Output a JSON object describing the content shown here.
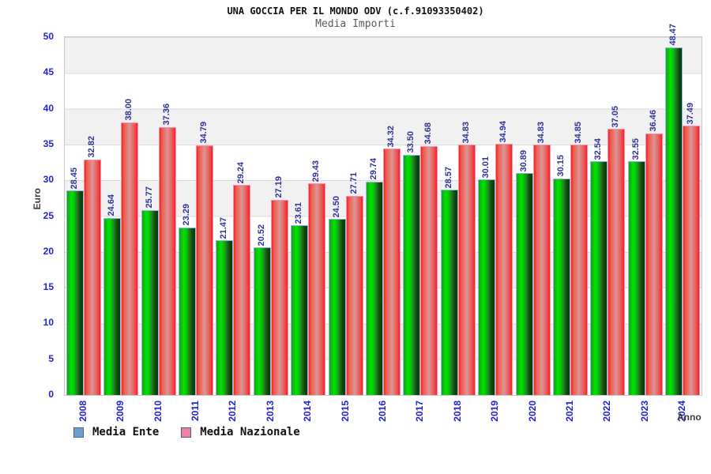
{
  "header": {
    "title": "UNA GOCCIA PER IL MONDO ODV (c.f.91093350402)",
    "subtitle": "Media Importi"
  },
  "chart_data": {
    "type": "bar",
    "title": "UNA GOCCIA PER IL MONDO ODV (c.f.91093350402)",
    "subtitle": "Media Importi",
    "ylabel": "Euro",
    "xlabel": "Anno",
    "ylim": [
      0,
      50
    ],
    "ytick_step": 5,
    "grid": "horizontal-bands",
    "legend_position": "bottom-left",
    "categories": [
      "2008",
      "2009",
      "2010",
      "2011",
      "2012",
      "2013",
      "2014",
      "2015",
      "2016",
      "2017",
      "2018",
      "2019",
      "2020",
      "2021",
      "2022",
      "2023",
      "2024"
    ],
    "series": [
      {
        "name": "Media Ente",
        "values": [
          28.45,
          24.64,
          25.77,
          23.29,
          21.47,
          20.52,
          23.61,
          24.5,
          29.74,
          33.5,
          28.57,
          30.01,
          30.89,
          30.15,
          32.54,
          32.55,
          48.47
        ]
      },
      {
        "name": "Media Nazionale",
        "values": [
          32.82,
          38.0,
          37.36,
          34.79,
          29.24,
          27.19,
          29.43,
          27.71,
          34.32,
          34.68,
          34.83,
          34.94,
          34.83,
          34.85,
          37.05,
          36.46,
          37.49
        ]
      }
    ]
  },
  "colors": {
    "bar_ente": "#00cc00",
    "bar_nazionale": "#ee3333",
    "legend_ente": "#6b9fd4",
    "legend_nazionale": "#ee7fa6",
    "axis_text": "#2424cf",
    "value_text": "#32329b"
  }
}
